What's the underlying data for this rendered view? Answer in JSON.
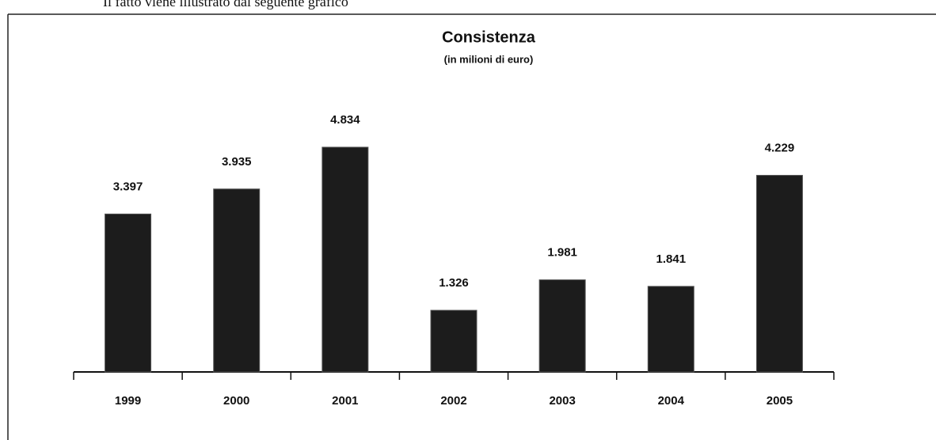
{
  "header_text": "Il fatto viene illustrato dal seguente grafico",
  "chart_data": {
    "type": "bar",
    "title": "Consistenza",
    "subtitle": "(in milioni di euro)",
    "categories": [
      "1999",
      "2000",
      "2001",
      "2002",
      "2003",
      "2004",
      "2005"
    ],
    "values": [
      3397,
      3935,
      4834,
      1326,
      1981,
      1841,
      4229
    ],
    "value_labels": [
      "3.397",
      "3.935",
      "4.834",
      "1.326",
      "1.981",
      "1.841",
      "4.229"
    ],
    "color": "#1c1c1c"
  }
}
